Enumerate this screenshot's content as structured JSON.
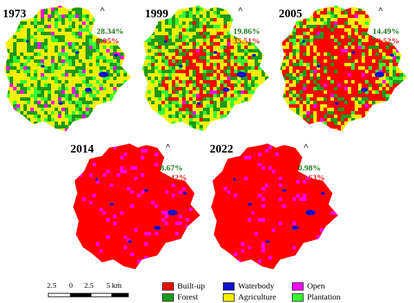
{
  "colors": {
    "forest_text": "#1e7a1e",
    "builtup_text": "#e02020",
    "builtup": "#ff0000",
    "waterbody": "#1010d0",
    "open": "#ff00ff",
    "forest": "#1a9a1a",
    "agriculture": "#f5f000",
    "plantation": "#33ff33"
  },
  "panels": [
    {
      "year": "1973",
      "forest_pct": "28.34%",
      "builtup_pct": "8.05%",
      "builtup_level": 0.08
    },
    {
      "year": "1999",
      "forest_pct": "19.86%",
      "builtup_pct": "35.51%",
      "builtup_level": 0.36
    },
    {
      "year": "2005",
      "forest_pct": "14.49%",
      "builtup_pct": "48.52%",
      "builtup_level": 0.49
    },
    {
      "year": "2014",
      "forest_pct": "8.67%",
      "builtup_pct": "69.42%",
      "builtup_level": 0.69
    },
    {
      "year": "2022",
      "forest_pct": "0.98%",
      "builtup_pct": "86.63%",
      "builtup_level": 0.87
    }
  ],
  "north_symbol": "north-arrow-icon",
  "scale": {
    "ticks": [
      "2.5",
      "0",
      "2.5",
      "5 km"
    ]
  },
  "legend": [
    {
      "label": "Built-up",
      "color": "#ff0000"
    },
    {
      "label": "Waterbody",
      "color": "#1010d0"
    },
    {
      "label": "Open",
      "color": "#ff00ff"
    },
    {
      "label": "Forest",
      "color": "#1a9a1a"
    },
    {
      "label": "Agriculture",
      "color": "#f5f000"
    },
    {
      "label": "Plantation",
      "color": "#33ff33"
    }
  ]
}
